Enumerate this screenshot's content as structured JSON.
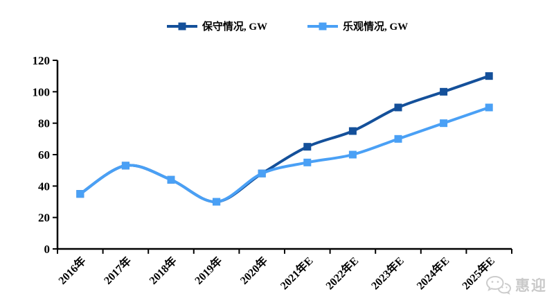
{
  "watermark": {
    "icon": "wechat-icon",
    "text": "惠迎",
    "color": "#c9c9c9"
  },
  "chart_data": {
    "type": "line",
    "title": "",
    "xlabel": "",
    "ylabel": "",
    "categories": [
      "2016年",
      "2017年",
      "2018年",
      "2019年",
      "2020年",
      "2021年E",
      "2022年E",
      "2023年E",
      "2024年E",
      "2025年E"
    ],
    "series": [
      {
        "name": "保守情况, GW",
        "color": "#14509A",
        "values": [
          35,
          53,
          44,
          30,
          48,
          65,
          75,
          90,
          100,
          110
        ]
      },
      {
        "name": "乐观情况, GW",
        "color": "#4AA0F5",
        "values": [
          35,
          53,
          44,
          30,
          48,
          55,
          60,
          70,
          80,
          90
        ]
      }
    ],
    "ylim": [
      0,
      120
    ],
    "ytick_step": 20,
    "yticks": [
      0,
      20,
      40,
      60,
      80,
      100,
      120
    ],
    "legend_position": "top",
    "grid": false,
    "marker": "square",
    "axis_color": "#000000",
    "notes": "historical 2016-2020 values identical for both series; lines overlap until 2020"
  }
}
